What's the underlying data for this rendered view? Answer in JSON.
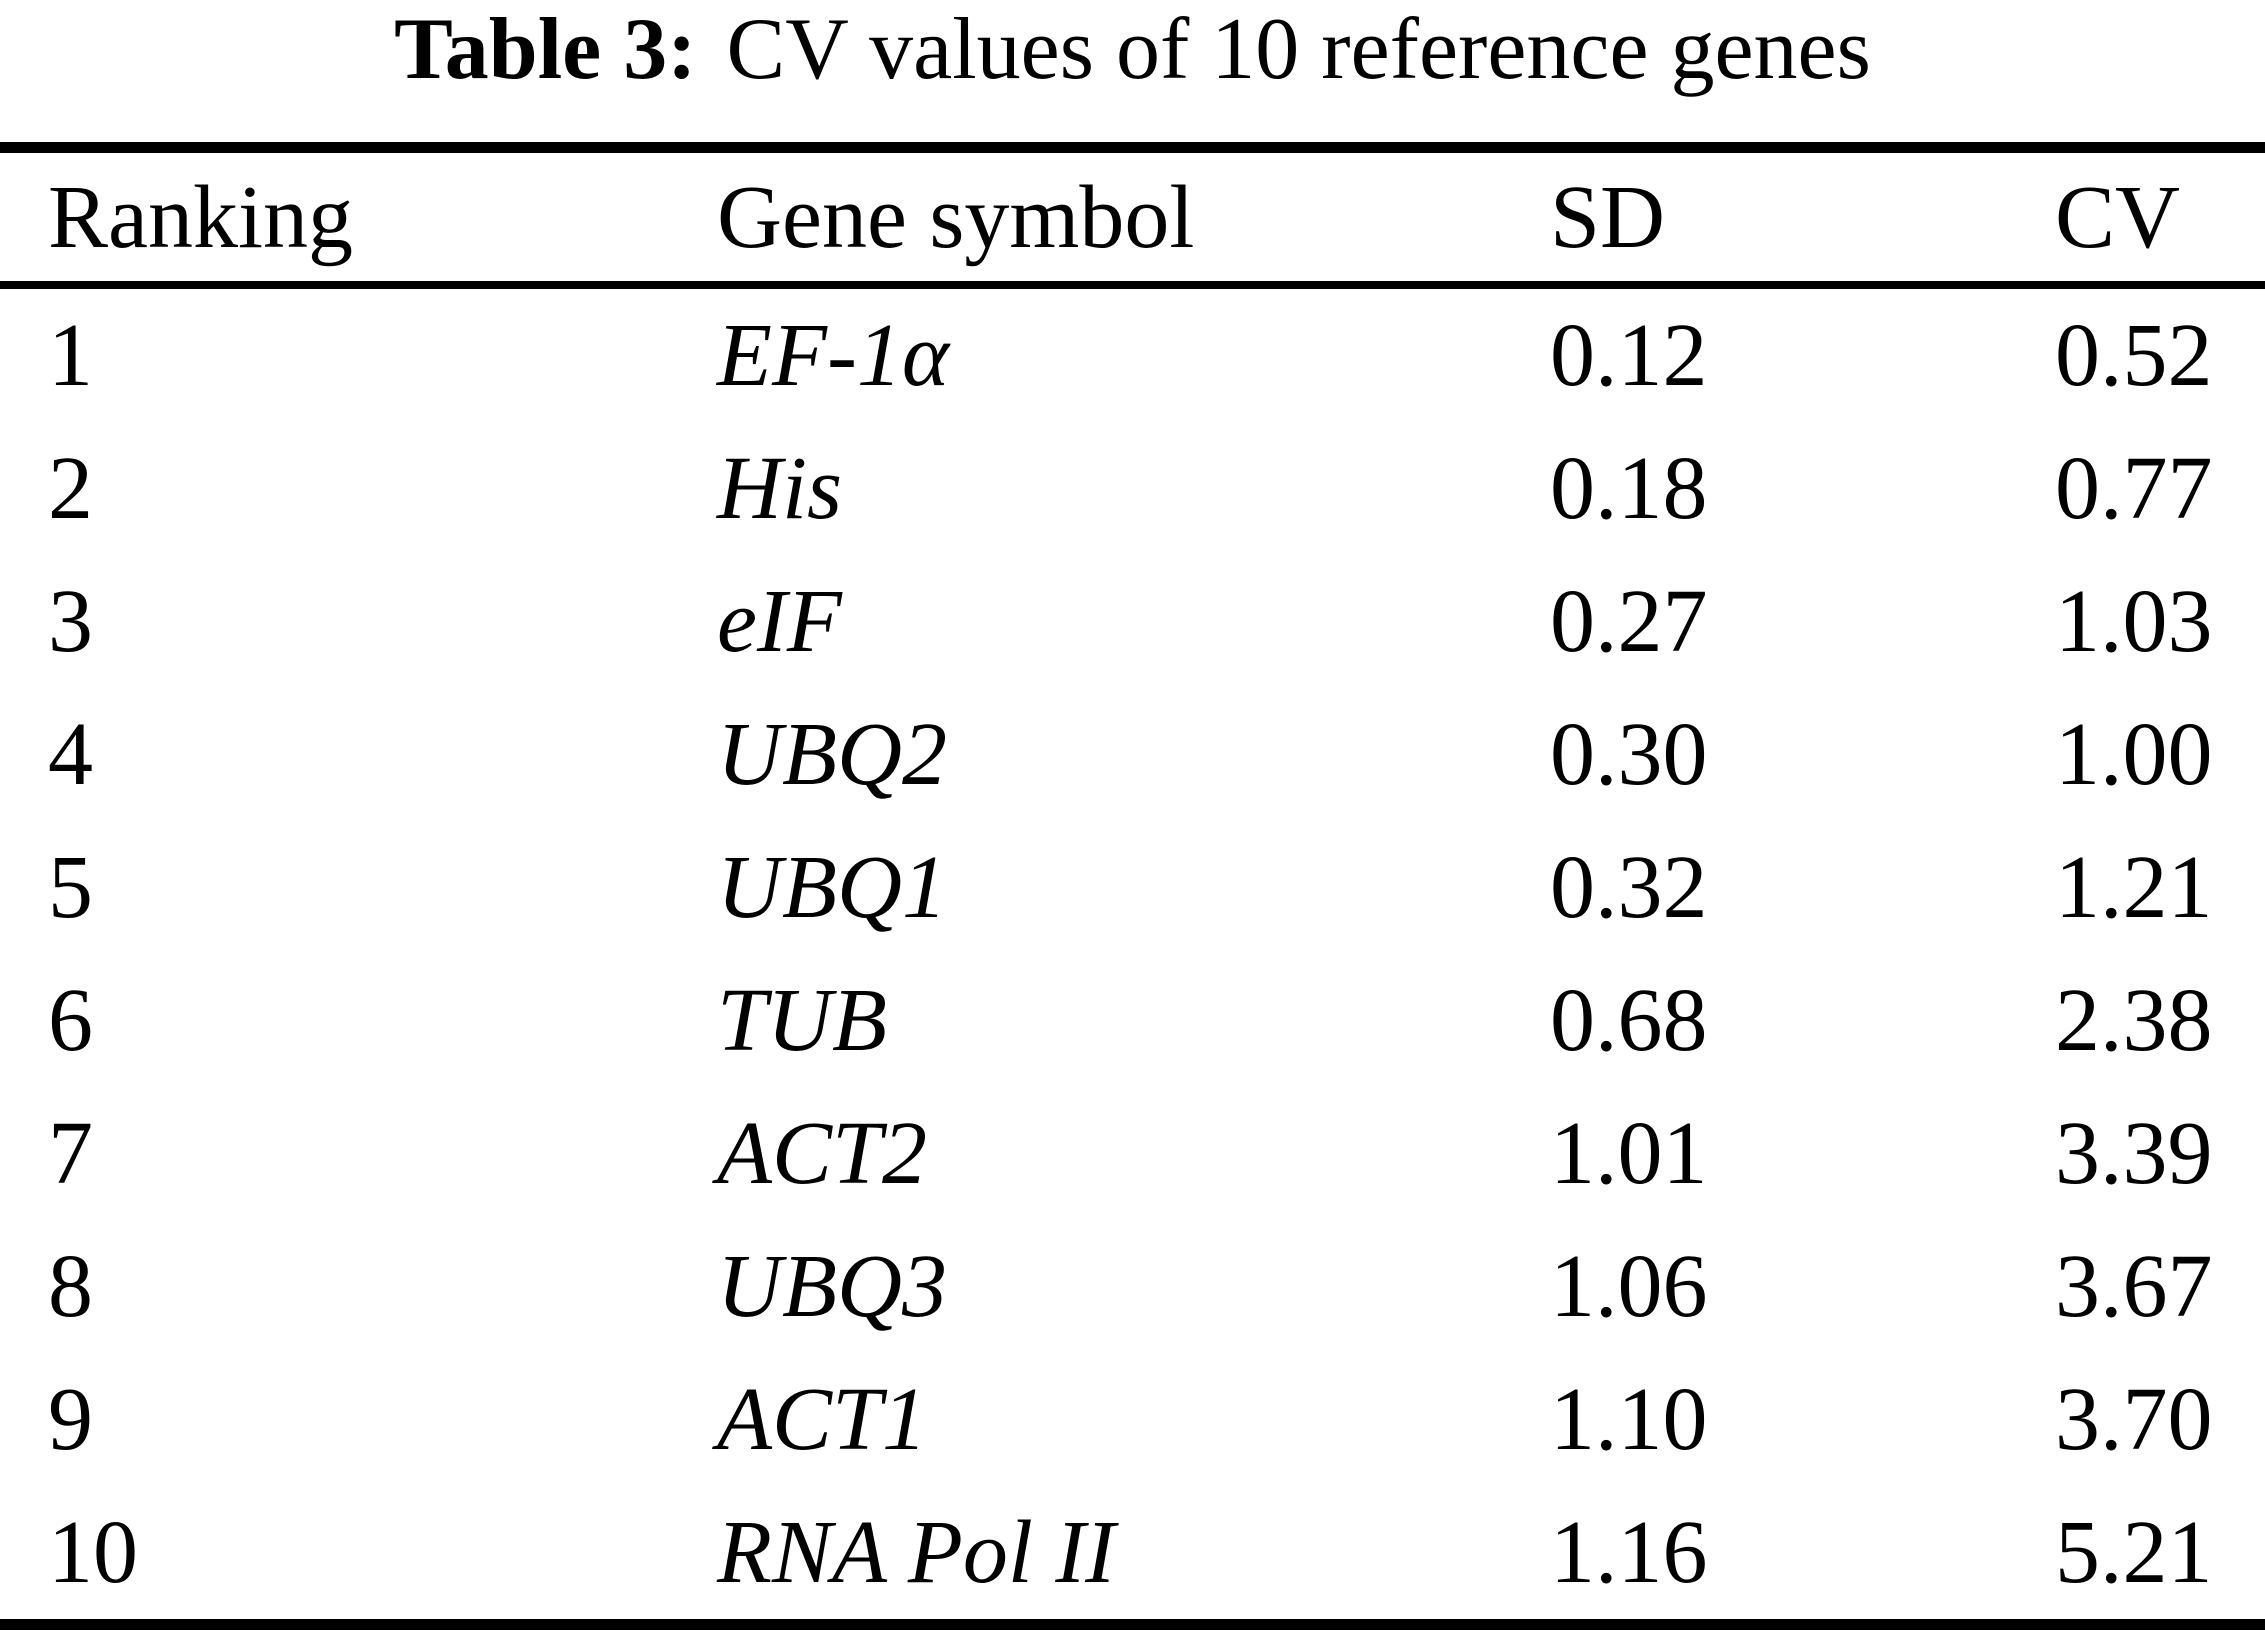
{
  "colors": {
    "text": "#000000",
    "background": "#ffffff",
    "rule": "#000000"
  },
  "table": {
    "title": {
      "label": "Table 3:",
      "caption": "CV values of 10 reference genes"
    },
    "columns": [
      "Ranking",
      "Gene symbol",
      "SD",
      "CV"
    ],
    "rows": [
      {
        "ranking": "1",
        "gene": "EF-1α",
        "sd": "0.12",
        "cv": "0.52"
      },
      {
        "ranking": "2",
        "gene": "His",
        "sd": "0.18",
        "cv": "0.77"
      },
      {
        "ranking": "3",
        "gene": "eIF",
        "sd": "0.27",
        "cv": "1.03"
      },
      {
        "ranking": "4",
        "gene": "UBQ2",
        "sd": "0.30",
        "cv": "1.00"
      },
      {
        "ranking": "5",
        "gene": "UBQ1",
        "sd": "0.32",
        "cv": "1.21"
      },
      {
        "ranking": "6",
        "gene": "TUB",
        "sd": "0.68",
        "cv": "2.38"
      },
      {
        "ranking": "7",
        "gene": "ACT2",
        "sd": "1.01",
        "cv": "3.39"
      },
      {
        "ranking": "8",
        "gene": "UBQ3",
        "sd": "1.06",
        "cv": "3.67"
      },
      {
        "ranking": "9",
        "gene": "ACT1",
        "sd": "1.10",
        "cv": "3.70"
      },
      {
        "ranking": "10",
        "gene": "RNA Pol II",
        "sd": "1.16",
        "cv": "5.21"
      }
    ]
  }
}
